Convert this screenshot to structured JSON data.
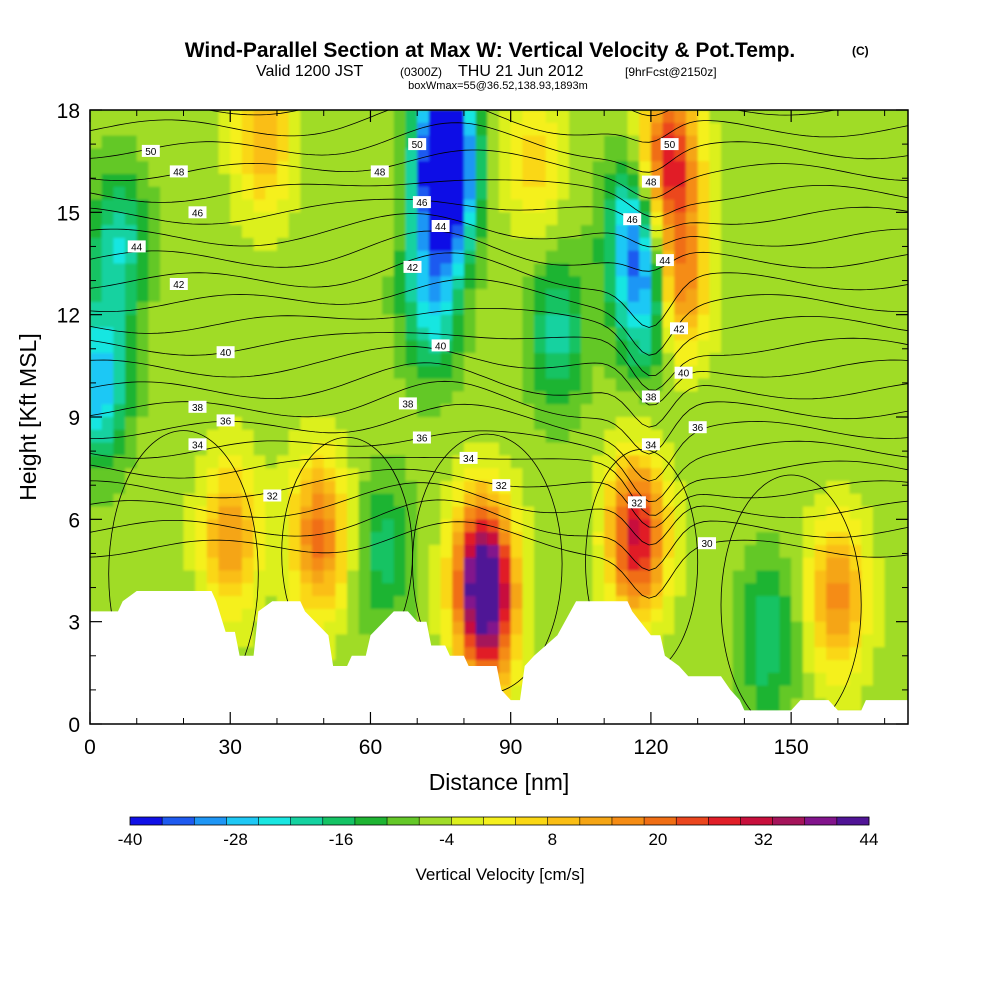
{
  "header": {
    "title": "Wind-Parallel Section at Max W: Vertical Velocity & Pot.Temp.",
    "copyright": "(C)",
    "valid_prefix": "Valid 1200 JST",
    "valid_utc": "(0300Z)",
    "valid_date": "THU 21 Jun 2012",
    "forecast": "[9hrFcst@2150z]",
    "box_info": "boxWmax=55@36.52,138.93,1893m"
  },
  "chart_data": {
    "type": "heatmap",
    "description_kind": "vertical cross-section",
    "xlabel": "Distance [nm]",
    "ylabel": "Height [Kft MSL]",
    "xlim": [
      0,
      175
    ],
    "ylim": [
      0,
      18
    ],
    "x_ticks": [
      "0",
      "30",
      "60",
      "90",
      "120",
      "150"
    ],
    "x_tick_values": [
      0,
      30,
      60,
      90,
      120,
      150
    ],
    "y_ticks": [
      "0",
      "3",
      "6",
      "9",
      "12",
      "15",
      "18"
    ],
    "y_tick_values": [
      0,
      3,
      6,
      9,
      12,
      15,
      18
    ],
    "colorbar": {
      "label": "Vertical Velocity [cm/s]",
      "range": [
        -40,
        44
      ],
      "step": 4,
      "tick_labels": [
        "-40",
        "-28",
        "-16",
        "-4",
        "8",
        "20",
        "32",
        "44"
      ],
      "tick_values": [
        -40,
        -28,
        -16,
        -4,
        8,
        20,
        32,
        44
      ],
      "colors": [
        "#1010e6",
        "#1e5af0",
        "#1e96f5",
        "#1ec8f5",
        "#19e6e1",
        "#14d2a0",
        "#14c364",
        "#1eb432",
        "#64c828",
        "#a0dc28",
        "#dcf01e",
        "#f5f01e",
        "#fad714",
        "#fabe14",
        "#f5a514",
        "#f58c14",
        "#f06e14",
        "#eb461e",
        "#e11e28",
        "#c80f3c",
        "#a5145a",
        "#82148c",
        "#501496"
      ]
    },
    "vertical_velocity_features": [
      {
        "x": 84,
        "z": 4.5,
        "w": 44
      },
      {
        "x": 85,
        "z": 3.0,
        "w": 30
      },
      {
        "x": 117,
        "z": 5.5,
        "w": 40
      },
      {
        "x": 124,
        "z": 16.5,
        "w": 38
      },
      {
        "x": 126,
        "z": 13.0,
        "w": 28
      },
      {
        "x": 49,
        "z": 5.5,
        "w": 28
      },
      {
        "x": 30,
        "z": 5.5,
        "w": 22
      },
      {
        "x": 160,
        "z": 3.7,
        "w": 24
      },
      {
        "x": 37,
        "z": 17.2,
        "w": 18
      },
      {
        "x": 95,
        "z": 16.5,
        "w": 12
      },
      {
        "x": 76,
        "z": 17.0,
        "w": -40
      },
      {
        "x": 76,
        "z": 15.5,
        "w": -30
      },
      {
        "x": 73,
        "z": 12.5,
        "w": -22
      },
      {
        "x": 119,
        "z": 12.5,
        "w": -24
      },
      {
        "x": 116,
        "z": 14.5,
        "w": -22
      },
      {
        "x": 2,
        "z": 10.0,
        "w": -26
      },
      {
        "x": 6,
        "z": 14.0,
        "w": -18
      },
      {
        "x": 145,
        "z": 2.5,
        "w": -14
      },
      {
        "x": 100,
        "z": 11.5,
        "w": -16
      },
      {
        "x": 63,
        "z": 5.0,
        "w": -12
      }
    ],
    "terrain_kft": [
      [
        0,
        3.3
      ],
      [
        6,
        3.3
      ],
      [
        7,
        3.6
      ],
      [
        10,
        3.9
      ],
      [
        26,
        3.9
      ],
      [
        27,
        3.6
      ],
      [
        29,
        2.7
      ],
      [
        31,
        2.7
      ],
      [
        32,
        2.0
      ],
      [
        35,
        2.0
      ],
      [
        36,
        3.3
      ],
      [
        39,
        3.6
      ],
      [
        45,
        3.6
      ],
      [
        46,
        3.3
      ],
      [
        51,
        2.6
      ],
      [
        52,
        1.7
      ],
      [
        55,
        1.7
      ],
      [
        56,
        2.0
      ],
      [
        59,
        2.0
      ],
      [
        60,
        2.6
      ],
      [
        65,
        3.3
      ],
      [
        68,
        3.3
      ],
      [
        70,
        3.0
      ],
      [
        72,
        3.0
      ],
      [
        73,
        2.3
      ],
      [
        76,
        2.3
      ],
      [
        77,
        2.0
      ],
      [
        80,
        2.0
      ],
      [
        81,
        1.7
      ],
      [
        87,
        1.7
      ],
      [
        88,
        1.0
      ],
      [
        90,
        0.7
      ],
      [
        92,
        0.7
      ],
      [
        93,
        1.7
      ],
      [
        95,
        2.0
      ],
      [
        100,
        2.6
      ],
      [
        104,
        3.6
      ],
      [
        115,
        3.6
      ],
      [
        116,
        3.3
      ],
      [
        120,
        2.6
      ],
      [
        122,
        2.6
      ],
      [
        123,
        2.0
      ],
      [
        126,
        1.7
      ],
      [
        128,
        1.4
      ],
      [
        135,
        1.4
      ],
      [
        137,
        1.0
      ],
      [
        139,
        0.7
      ],
      [
        140,
        0.4
      ],
      [
        150,
        0.4
      ],
      [
        152,
        0.7
      ],
      [
        158,
        0.7
      ],
      [
        160,
        0.4
      ],
      [
        165,
        0.4
      ],
      [
        166,
        0.7
      ],
      [
        175,
        0.7
      ]
    ],
    "theta_contour_labels": [
      {
        "text": "50",
        "x": 13,
        "z": 16.8
      },
      {
        "text": "48",
        "x": 19,
        "z": 16.2
      },
      {
        "text": "46",
        "x": 23,
        "z": 15.0
      },
      {
        "text": "44",
        "x": 10,
        "z": 14.0
      },
      {
        "text": "42",
        "x": 19,
        "z": 12.9
      },
      {
        "text": "40",
        "x": 29,
        "z": 10.9
      },
      {
        "text": "38",
        "x": 23,
        "z": 9.3
      },
      {
        "text": "36",
        "x": 29,
        "z": 8.9
      },
      {
        "text": "34",
        "x": 23,
        "z": 8.2
      },
      {
        "text": "32",
        "x": 39,
        "z": 6.7
      },
      {
        "text": "50",
        "x": 70,
        "z": 17.0
      },
      {
        "text": "48",
        "x": 62,
        "z": 16.2
      },
      {
        "text": "46",
        "x": 71,
        "z": 15.3
      },
      {
        "text": "44",
        "x": 75,
        "z": 14.6
      },
      {
        "text": "42",
        "x": 69,
        "z": 13.4
      },
      {
        "text": "40",
        "x": 75,
        "z": 11.1
      },
      {
        "text": "38",
        "x": 68,
        "z": 9.4
      },
      {
        "text": "36",
        "x": 71,
        "z": 8.4
      },
      {
        "text": "34",
        "x": 81,
        "z": 7.8
      },
      {
        "text": "32",
        "x": 88,
        "z": 7.0
      },
      {
        "text": "50",
        "x": 124,
        "z": 17.0
      },
      {
        "text": "48",
        "x": 120,
        "z": 15.9
      },
      {
        "text": "46",
        "x": 116,
        "z": 14.8
      },
      {
        "text": "44",
        "x": 123,
        "z": 13.6
      },
      {
        "text": "42",
        "x": 126,
        "z": 11.6
      },
      {
        "text": "40",
        "x": 127,
        "z": 10.3
      },
      {
        "text": "38",
        "x": 120,
        "z": 9.6
      },
      {
        "text": "36",
        "x": 130,
        "z": 8.7
      },
      {
        "text": "34",
        "x": 120,
        "z": 8.2
      },
      {
        "text": "32",
        "x": 117,
        "z": 6.5
      },
      {
        "text": "30",
        "x": 132,
        "z": 5.3
      }
    ],
    "theta_contour_levels": [
      30,
      31,
      32,
      33,
      34,
      35,
      36,
      37,
      38,
      39,
      40,
      41,
      42,
      43,
      44,
      45,
      46,
      47,
      48,
      49,
      50,
      51,
      52
    ]
  }
}
